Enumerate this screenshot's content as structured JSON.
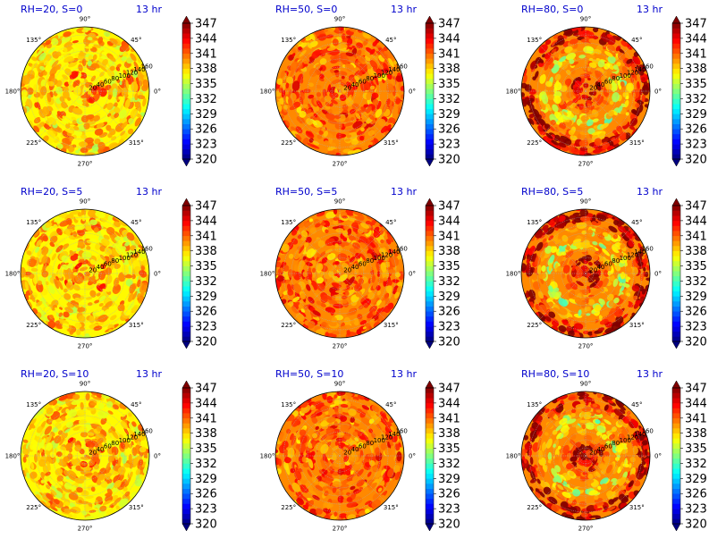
{
  "chart_data": {
    "type": "heatmap",
    "projection": "polar",
    "panels": [
      {
        "label": "RH=20, S=0",
        "time": "13 hr",
        "rh": 20,
        "s": 0
      },
      {
        "label": "RH=50, S=0",
        "time": "13 hr",
        "rh": 50,
        "s": 0
      },
      {
        "label": "RH=80, S=0",
        "time": "13 hr",
        "rh": 80,
        "s": 0
      },
      {
        "label": "RH=20, S=5",
        "time": "13 hr",
        "rh": 20,
        "s": 5
      },
      {
        "label": "RH=50, S=5",
        "time": "13 hr",
        "rh": 50,
        "s": 5
      },
      {
        "label": "RH=80, S=5",
        "time": "13 hr",
        "rh": 80,
        "s": 5
      },
      {
        "label": "RH=20, S=10",
        "time": "13 hr",
        "rh": 20,
        "s": 10
      },
      {
        "label": "RH=50, S=10",
        "time": "13 hr",
        "rh": 50,
        "s": 10
      },
      {
        "label": "RH=80, S=10",
        "time": "13 hr",
        "rh": 80,
        "s": 10
      }
    ],
    "angle_labels": [
      "0°",
      "45°",
      "90°",
      "135°",
      "180°",
      "225°",
      "270°",
      "315°"
    ],
    "radial_labels": [
      "20",
      "40",
      "60",
      "80",
      "100",
      "120",
      "140",
      "160"
    ],
    "radial_label_angle_deg": 22.5,
    "rmax": 160,
    "colorbar": {
      "min": 320,
      "max": 347,
      "step": 1,
      "ticks": [
        "347",
        "344",
        "341",
        "338",
        "335",
        "332",
        "329",
        "326",
        "323",
        "320"
      ],
      "colormap": "jet",
      "extend": "both"
    },
    "grid": true
  }
}
